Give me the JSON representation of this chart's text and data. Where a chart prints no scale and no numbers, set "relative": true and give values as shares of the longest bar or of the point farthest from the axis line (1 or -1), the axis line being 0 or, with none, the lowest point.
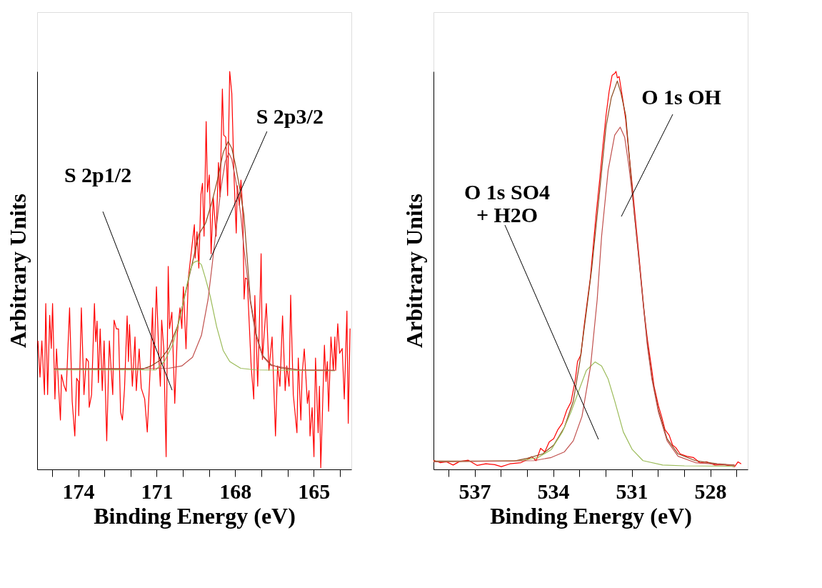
{
  "chart_data": [
    {
      "type": "line",
      "relative": true,
      "xlabel": "Binding Energy (eV)",
      "ylabel": "Arbitrary Units",
      "legend": false,
      "grid": false,
      "line_style": "solid",
      "xlim": [
        175.57,
        163.56
      ],
      "xticks": [
        {
          "value": 175,
          "label": null
        },
        174,
        {
          "value": 173,
          "label": null
        },
        {
          "value": 172,
          "label": null
        },
        171,
        {
          "value": 170,
          "label": null
        },
        {
          "value": 169,
          "label": null
        },
        168,
        {
          "value": 167,
          "label": null
        },
        {
          "value": 166,
          "label": null
        },
        165,
        {
          "value": 164,
          "label": null
        }
      ],
      "series": [
        {
          "color": "#ff0000",
          "x": [
            175.54,
            175.46,
            175.39,
            175.29,
            175.24,
            175.17,
            175.09,
            175.03,
            174.98,
            174.89,
            174.83,
            174.68,
            174.64,
            174.54,
            174.46,
            174.33,
            174.23,
            174.13,
            174.06,
            173.99,
            173.98,
            173.88,
            173.78,
            173.69,
            173.61,
            173.58,
            173.49,
            173.38,
            173.33,
            173.28,
            173.23,
            173.16,
            173.08,
            173.01,
            172.91,
            172.81,
            172.68,
            172.63,
            172.54,
            172.46,
            172.38,
            172.31,
            172.23,
            172.13,
            172.08,
            172.04,
            171.93,
            171.83,
            171.78,
            171.67,
            171.59,
            171.46,
            171.36,
            171.23,
            171.16,
            171.11,
            171.01,
            170.91,
            170.86,
            170.81,
            170.73,
            170.64,
            170.56,
            170.51,
            170.42,
            170.31,
            170.21,
            170.11,
            170.04,
            169.98,
            169.88,
            169.79,
            169.56,
            169.53,
            169.46,
            169.39,
            169.31,
            169.25,
            169.19,
            169.11,
            169.06,
            168.99,
            168.92,
            168.84,
            168.73,
            168.64,
            168.58,
            168.49,
            168.44,
            168.36,
            168.29,
            168.21,
            168.13,
            168.04,
            167.96,
            167.92,
            167.84,
            167.78,
            167.71,
            167.66,
            167.61,
            167.54,
            167.39,
            167.29,
            167.25,
            167.14,
            167.03,
            167.01,
            166.96,
            166.81,
            166.71,
            166.59,
            166.46,
            166.38,
            166.29,
            166.19,
            166.09,
            166.03,
            165.94,
            165.88,
            165.78,
            165.64,
            165.59,
            165.49,
            165.44,
            165.36,
            165.24,
            165.18,
            165.14,
            165.06,
            164.99,
            164.93,
            164.83,
            164.78,
            164.73,
            164.59,
            164.53,
            164.48,
            164.43,
            164.34,
            164.25,
            164.19,
            164.16,
            164.08,
            164.01,
            163.91,
            163.83,
            163.73,
            163.68,
            163.61
          ],
          "values": [
            0.323,
            0.232,
            0.323,
            0.188,
            0.417,
            0.188,
            0.387,
            0.304,
            0.417,
            0.177,
            0.303,
            0.124,
            0.238,
            0.21,
            0.196,
            0.406,
            0.171,
            0.084,
            0.229,
            0.221,
            0.135,
            0.406,
            0.188,
            0.279,
            0.271,
            0.156,
            0.188,
            0.417,
            0.321,
            0.373,
            0.218,
            0.353,
            0.198,
            0.323,
            0.072,
            0.323,
            0.188,
            0.375,
            0.353,
            0.353,
            0.144,
            0.124,
            0.204,
            0.386,
            0.271,
            0.364,
            0.209,
            0.333,
            0.198,
            0.303,
            0.204,
            0.177,
            0.094,
            0.281,
            0.406,
            0.25,
            0.459,
            0.271,
            0.209,
            0.375,
            0.303,
            0.032,
            0.51,
            0.354,
            0.395,
            0.166,
            0.343,
            0.406,
            0.354,
            0.459,
            0.303,
            0.481,
            0.615,
            0.531,
            0.597,
            0.506,
            0.691,
            0.719,
            0.586,
            0.874,
            0.697,
            0.74,
            0.542,
            0.685,
            0.586,
            0.771,
            0.685,
            0.956,
            0.84,
            0.835,
            0.688,
            1.0,
            0.945,
            0.727,
            0.594,
            0.713,
            0.663,
            0.727,
            0.647,
            0.428,
            0.481,
            0.478,
            0.26,
            0.177,
            0.437,
            0.209,
            0.481,
            0.542,
            0.276,
            0.417,
            0.249,
            0.333,
            0.084,
            0.26,
            0.209,
            0.386,
            0.198,
            0.26,
            0.209,
            0.438,
            0.188,
            0.092,
            0.28,
            0.124,
            0.24,
            0.303,
            0.166,
            0.198,
            0.084,
            0.155,
            0.032,
            0.28,
            0.092,
            0.209,
            0.004,
            0.312,
            0.221,
            0.271,
            0.146,
            0.333,
            0.249,
            0.333,
            0.249,
            0.366,
            0.292,
            0.304,
            0.177,
            0.398,
            0.116,
            0.354
          ]
        },
        {
          "color": "#8b4a1e",
          "x": [
            174.92,
            171.54,
            171.21,
            170.88,
            170.54,
            170.21,
            169.96,
            169.79,
            169.54,
            169.38,
            169.13,
            168.88,
            168.67,
            168.46,
            168.27,
            168.13,
            168.0,
            167.83,
            167.67,
            167.42,
            167.21,
            166.96,
            166.63,
            166.21,
            165.54,
            164.19
          ],
          "values": [
            0.252,
            0.252,
            0.26,
            0.274,
            0.304,
            0.359,
            0.426,
            0.475,
            0.547,
            0.592,
            0.619,
            0.674,
            0.73,
            0.796,
            0.824,
            0.807,
            0.768,
            0.708,
            0.641,
            0.426,
            0.343,
            0.287,
            0.263,
            0.254,
            0.25,
            0.249
          ]
        },
        {
          "color": "#9bbb59",
          "x": [
            174.92,
            171.04,
            170.71,
            170.38,
            170.13,
            169.88,
            169.71,
            169.59,
            169.44,
            169.29,
            169.14,
            168.96,
            168.71,
            168.46,
            168.21,
            167.79,
            167.21,
            164.19
          ],
          "values": [
            0.25,
            0.25,
            0.271,
            0.315,
            0.376,
            0.453,
            0.503,
            0.52,
            0.524,
            0.514,
            0.481,
            0.437,
            0.359,
            0.299,
            0.271,
            0.254,
            0.25,
            0.248
          ]
        },
        {
          "color": "#c0504d",
          "x": [
            174.92,
            170.54,
            170.04,
            169.63,
            169.29,
            169.04,
            168.88,
            168.71,
            168.54,
            168.38,
            168.24,
            168.13,
            167.96,
            167.79,
            167.67,
            167.42,
            167.21,
            166.96,
            166.63,
            165.54,
            164.19
          ],
          "values": [
            0.253,
            0.254,
            0.26,
            0.282,
            0.337,
            0.426,
            0.514,
            0.614,
            0.708,
            0.774,
            0.795,
            0.779,
            0.719,
            0.641,
            0.558,
            0.42,
            0.337,
            0.285,
            0.261,
            0.25,
            0.249
          ]
        }
      ],
      "annotations": [
        {
          "text": "S 2p1/2",
          "x": 170.41,
          "y": 0.199
        },
        {
          "text": "S 2p3/2",
          "x": 168.97,
          "y": 0.526
        }
      ]
    },
    {
      "type": "line",
      "relative": true,
      "xlabel": "Binding Energy (eV)",
      "ylabel": "Arbitrary Units",
      "legend": false,
      "grid": false,
      "line_style": "solid",
      "xlim": [
        538.57,
        526.57
      ],
      "xticks": [
        {
          "value": 538,
          "label": null
        },
        537,
        {
          "value": 536,
          "label": null
        },
        {
          "value": 535,
          "label": null
        },
        534,
        {
          "value": 533,
          "label": null
        },
        {
          "value": 532,
          "label": null
        },
        531,
        {
          "value": 530,
          "label": null
        },
        {
          "value": 529,
          "label": null
        },
        528,
        {
          "value": 527,
          "label": null
        }
      ],
      "series": [
        {
          "color": "#ff0000",
          "x": [
            538.57,
            538.32,
            538.07,
            537.82,
            537.57,
            537.24,
            536.9,
            536.57,
            536.23,
            535.98,
            535.65,
            535.23,
            534.98,
            534.82,
            534.65,
            534.48,
            534.32,
            534.15,
            533.98,
            533.82,
            533.65,
            533.48,
            533.32,
            533.15,
            533.07,
            532.94,
            532.82,
            532.69,
            532.58,
            532.36,
            532.23,
            532.11,
            531.98,
            531.86,
            531.75,
            531.65,
            531.6,
            531.55,
            531.48,
            531.42,
            531.34,
            531.23,
            531.11,
            530.98,
            530.86,
            530.73,
            530.63,
            530.53,
            530.4,
            530.23,
            530.15,
            529.98,
            529.86,
            529.73,
            529.57,
            529.44,
            529.32,
            529.15,
            528.9,
            528.65,
            528.4,
            528.15,
            527.82,
            527.49,
            527.07,
            526.94,
            526.82
          ],
          "values": [
            0.023,
            0.017,
            0.019,
            0.011,
            0.02,
            0.023,
            0.01,
            0.014,
            0.012,
            0.007,
            0.014,
            0.017,
            0.025,
            0.032,
            0.022,
            0.053,
            0.044,
            0.069,
            0.077,
            0.1,
            0.116,
            0.149,
            0.169,
            0.227,
            0.271,
            0.288,
            0.359,
            0.426,
            0.481,
            0.641,
            0.724,
            0.807,
            0.89,
            0.951,
            0.99,
            0.995,
            1.0,
            0.984,
            0.987,
            0.962,
            0.929,
            0.879,
            0.796,
            0.713,
            0.63,
            0.542,
            0.47,
            0.398,
            0.326,
            0.249,
            0.21,
            0.16,
            0.133,
            0.1,
            0.086,
            0.061,
            0.055,
            0.039,
            0.033,
            0.03,
            0.017,
            0.019,
            0.011,
            0.012,
            0.007,
            0.019,
            0.014
          ]
        },
        {
          "color": "#8b4a1e",
          "x": [
            538.57,
            535.5,
            534.98,
            534.4,
            533.98,
            533.57,
            533.23,
            532.98,
            532.73,
            532.53,
            532.23,
            531.98,
            531.78,
            531.55,
            531.41,
            531.23,
            531.07,
            530.9,
            530.73,
            530.57,
            530.4,
            530.23,
            529.98,
            529.65,
            529.23,
            528.57,
            527.74,
            527.07
          ],
          "values": [
            0.021,
            0.021,
            0.028,
            0.039,
            0.061,
            0.106,
            0.172,
            0.271,
            0.398,
            0.503,
            0.696,
            0.862,
            0.934,
            0.976,
            0.945,
            0.89,
            0.769,
            0.641,
            0.531,
            0.426,
            0.315,
            0.232,
            0.149,
            0.077,
            0.039,
            0.022,
            0.014,
            0.011
          ]
        },
        {
          "color": "#9bbb59",
          "x": [
            538.57,
            535.23,
            534.57,
            534.07,
            533.65,
            533.32,
            532.98,
            532.73,
            532.4,
            532.15,
            531.9,
            531.65,
            531.32,
            530.98,
            530.57,
            529.82,
            528.99,
            527.07
          ],
          "values": [
            0.019,
            0.022,
            0.03,
            0.05,
            0.094,
            0.144,
            0.205,
            0.249,
            0.27,
            0.26,
            0.227,
            0.172,
            0.094,
            0.05,
            0.022,
            0.011,
            0.009,
            0.008
          ]
        },
        {
          "color": "#c0504d",
          "x": [
            538.57,
            534.73,
            534.07,
            533.57,
            533.23,
            532.9,
            532.57,
            532.32,
            532.15,
            531.9,
            531.65,
            531.44,
            531.27,
            531.11,
            530.94,
            530.73,
            530.57,
            530.4,
            530.23,
            529.98,
            529.65,
            529.23,
            528.57,
            527.07
          ],
          "values": [
            0.019,
            0.022,
            0.03,
            0.044,
            0.072,
            0.133,
            0.26,
            0.426,
            0.586,
            0.752,
            0.84,
            0.86,
            0.835,
            0.763,
            0.669,
            0.531,
            0.42,
            0.309,
            0.227,
            0.144,
            0.072,
            0.033,
            0.017,
            0.01
          ]
        }
      ],
      "annotations": [
        "O 1s SO4\n+ H2O",
        "O 1s OH"
      ]
    }
  ]
}
